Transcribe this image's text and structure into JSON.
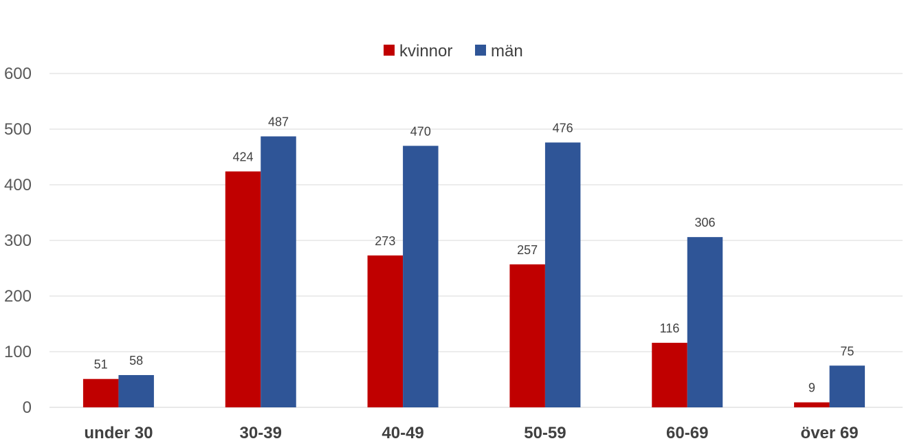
{
  "chart_data": {
    "type": "bar",
    "categories": [
      "under 30",
      "30-39",
      "40-49",
      "50-59",
      "60-69",
      "över 69"
    ],
    "series": [
      {
        "name": "kvinnor",
        "color": "#c00000",
        "values": [
          51,
          424,
          273,
          257,
          116,
          9
        ]
      },
      {
        "name": "män",
        "color": "#2f5597",
        "values": [
          58,
          487,
          470,
          476,
          306,
          75
        ]
      }
    ],
    "title": "",
    "xlabel": "",
    "ylabel": "",
    "ylim": [
      0,
      600
    ],
    "yticks": [
      0,
      100,
      200,
      300,
      400,
      500,
      600
    ],
    "grid": true,
    "legend_position": "top-center",
    "data_labels": true
  }
}
